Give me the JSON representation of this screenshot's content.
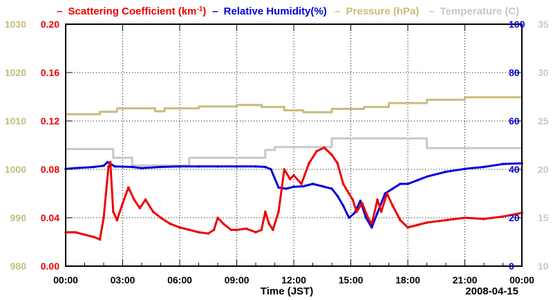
{
  "chart_data": {
    "type": "line",
    "title": "",
    "date_label": "2008-04-15",
    "xlabel": "Time (JST)",
    "x_ticks": [
      "00:00",
      "03:00",
      "06:00",
      "09:00",
      "12:00",
      "15:00",
      "18:00",
      "21:00",
      "00:00"
    ],
    "xlim_hours": [
      0,
      24
    ],
    "legend": [
      {
        "dash": "–",
        "name": "Scattering Coefficient (km",
        "sup": "-1",
        "tail": ")",
        "color": "#ee0000"
      },
      {
        "dash": "–",
        "name": "Relative Humidity(%)",
        "sup": "",
        "tail": "",
        "color": "#0000dd"
      },
      {
        "dash": "–",
        "name": "Pressure (hPa)",
        "sup": "",
        "tail": "",
        "color": "#c8bc7a"
      },
      {
        "dash": "–",
        "name": "Temperature (C)",
        "sup": "",
        "tail": "",
        "color": "#c8c8c8"
      }
    ],
    "axes": {
      "pressure": {
        "ticks": [
          "1030",
          "1020",
          "1010",
          "1000",
          "990",
          "980"
        ],
        "range": [
          980,
          1030
        ],
        "color": "#c8bc7a"
      },
      "scattering": {
        "ticks": [
          "0.20",
          "0.16",
          "0.12",
          "0.08",
          "0.04",
          "0.00"
        ],
        "range": [
          0,
          0.2
        ],
        "color": "#ee0000"
      },
      "humidity": {
        "ticks": [
          "100",
          "80",
          "60",
          "40",
          "20",
          "0"
        ],
        "range": [
          0,
          100
        ],
        "color": "#0000dd"
      },
      "temperature": {
        "ticks": [
          "35",
          "30",
          "25",
          "20",
          "15",
          "10"
        ],
        "range": [
          10,
          35
        ],
        "color": "#c8c8c8"
      }
    },
    "series": [
      {
        "name": "Pressure (hPa)",
        "axis": "pressure",
        "color": "#c8bc7a",
        "x": [
          0,
          1.8,
          1.8,
          2.7,
          2.7,
          4.7,
          4.7,
          5.2,
          5.2,
          7.0,
          7.0,
          9.0,
          9.0,
          10.3,
          10.3,
          11.5,
          11.5,
          12.5,
          12.5,
          14.0,
          14.0,
          15.7,
          15.7,
          17.0,
          17.0,
          19.0,
          19.0,
          21.0,
          21.0,
          24.0
        ],
        "y": [
          1011.4,
          1011.4,
          1011.9,
          1011.9,
          1012.6,
          1012.6,
          1012.0,
          1012.0,
          1012.6,
          1012.6,
          1013.0,
          1013.0,
          1013.3,
          1013.3,
          1012.9,
          1012.9,
          1012.2,
          1012.2,
          1011.8,
          1011.8,
          1012.5,
          1012.5,
          1012.9,
          1012.9,
          1013.7,
          1013.7,
          1014.4,
          1014.4,
          1014.9,
          1014.9
        ]
      },
      {
        "name": "Temperature (C)",
        "axis": "temperature",
        "color": "#c8c8c8",
        "x": [
          0,
          2.5,
          2.5,
          3.5,
          3.5,
          6.5,
          6.5,
          10.5,
          10.5,
          11.0,
          11.0,
          14.0,
          14.0,
          19.0,
          19.0,
          24.0
        ],
        "y": [
          22.1,
          22.1,
          21.2,
          21.2,
          20.4,
          20.4,
          21.2,
          21.2,
          22.0,
          22.0,
          22.3,
          22.3,
          23.2,
          23.2,
          22.2,
          22.2
        ]
      },
      {
        "name": "Relative Humidity(%)",
        "axis": "humidity",
        "color": "#0000dd",
        "x": [
          0,
          0.5,
          1.5,
          2.0,
          2.2,
          2.4,
          2.6,
          3.5,
          4.0,
          5.0,
          6.0,
          7.0,
          8.0,
          9.0,
          10.0,
          10.5,
          10.8,
          11.2,
          11.6,
          12.0,
          12.5,
          13.0,
          13.5,
          14.0,
          14.3,
          14.6,
          14.9,
          15.2,
          15.5,
          15.8,
          16.1,
          16.4,
          16.8,
          17.2,
          17.6,
          18.0,
          18.5,
          19.0,
          20.0,
          21.0,
          22.0,
          23.0,
          24.0
        ],
        "y": [
          40.2,
          40.5,
          41.0,
          41.5,
          43.0,
          42.0,
          41.2,
          41.0,
          40.5,
          41.0,
          41.2,
          41.2,
          41.2,
          41.2,
          41.2,
          41.0,
          40.0,
          32.5,
          32.0,
          32.8,
          33.0,
          34.0,
          33.0,
          32.0,
          29.0,
          25.0,
          20.0,
          22.0,
          27.0,
          20.0,
          16.0,
          22.0,
          30.0,
          32.0,
          34.0,
          34.0,
          35.5,
          37.0,
          39.0,
          40.2,
          41.0,
          42.2,
          42.5
        ]
      },
      {
        "name": "Scattering Coefficient (km-1)",
        "axis": "scattering",
        "color": "#ee0000",
        "x": [
          0,
          0.5,
          1.0,
          1.5,
          1.8,
          2.0,
          2.15,
          2.25,
          2.35,
          2.5,
          2.7,
          3.0,
          3.3,
          3.6,
          3.9,
          4.2,
          4.6,
          5.0,
          5.5,
          6.0,
          6.5,
          7.0,
          7.5,
          7.8,
          8.0,
          8.3,
          8.7,
          9.0,
          9.5,
          10.0,
          10.3,
          10.5,
          10.7,
          10.9,
          11.2,
          11.5,
          11.8,
          12.0,
          12.4,
          12.8,
          13.2,
          13.6,
          14.0,
          14.3,
          14.6,
          14.9,
          15.1,
          15.3,
          15.6,
          15.9,
          16.1,
          16.4,
          16.6,
          16.9,
          17.2,
          17.6,
          18.0,
          18.5,
          19.0,
          20.0,
          21.0,
          22.0,
          23.0,
          24.0
        ],
        "y": [
          0.028,
          0.028,
          0.026,
          0.024,
          0.022,
          0.04,
          0.065,
          0.082,
          0.086,
          0.045,
          0.038,
          0.052,
          0.065,
          0.055,
          0.048,
          0.055,
          0.045,
          0.04,
          0.035,
          0.032,
          0.03,
          0.028,
          0.027,
          0.03,
          0.04,
          0.035,
          0.03,
          0.03,
          0.031,
          0.028,
          0.03,
          0.045,
          0.035,
          0.03,
          0.045,
          0.08,
          0.072,
          0.075,
          0.068,
          0.085,
          0.095,
          0.098,
          0.092,
          0.085,
          0.068,
          0.06,
          0.055,
          0.045,
          0.052,
          0.04,
          0.035,
          0.055,
          0.045,
          0.06,
          0.05,
          0.038,
          0.032,
          0.034,
          0.036,
          0.038,
          0.04,
          0.039,
          0.041,
          0.044
        ]
      }
    ]
  }
}
